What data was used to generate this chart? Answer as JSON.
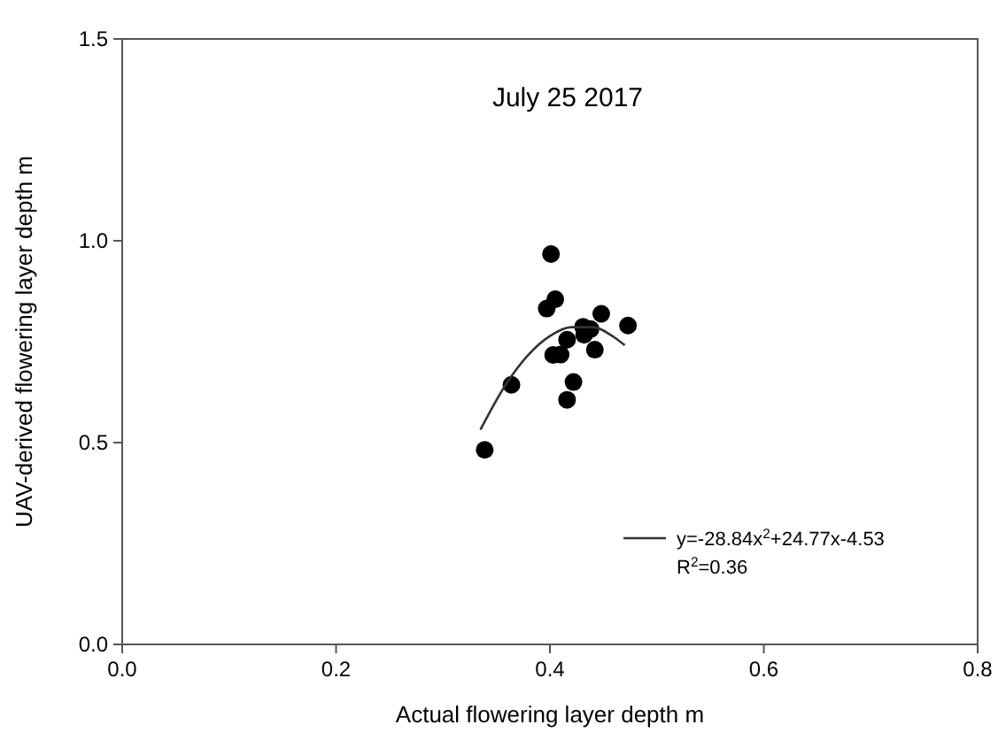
{
  "chart_data": {
    "type": "scatter",
    "title": "July 25 2017",
    "xlabel": "Actual flowering layer depth m",
    "ylabel": "UAV-derived flowering layer depth m",
    "xlim": [
      0,
      0.8
    ],
    "xticks": [
      {
        "value": 0,
        "label": "0.0"
      },
      0.2,
      0.4,
      0.6,
      0.8
    ],
    "ylim": [
      0,
      1.5
    ],
    "yticks": [
      {
        "value": 0,
        "label": "0.0"
      },
      0.5,
      {
        "value": 1,
        "label": "1.0"
      },
      1.5
    ],
    "grid": false,
    "legend": "bottom right",
    "marker": "circle",
    "series": [
      {
        "color": "#000000",
        "x": [
          0.401,
          0.405,
          0.397,
          0.448,
          0.473,
          0.431,
          0.438,
          0.432,
          0.416,
          0.442,
          0.41,
          0.403,
          0.364,
          0.422,
          0.416,
          0.339
        ],
        "values": [
          0.967,
          0.855,
          0.832,
          0.819,
          0.79,
          0.787,
          0.781,
          0.767,
          0.755,
          0.73,
          0.718,
          0.717,
          0.643,
          0.65,
          0.606,
          0.482
        ]
      },
      {
        "type": "line",
        "name": "y=-28.84x$^{2}$+24.77x-4.53",
        "color": "#333333",
        "line_style": "solid",
        "marker": "none",
        "x": [
          0.335,
          0.36,
          0.38,
          0.4,
          0.42,
          0.44,
          0.46,
          0.47
        ],
        "values": [
          0.532,
          0.649,
          0.718,
          0.764,
          0.786,
          0.786,
          0.761,
          0.741
        ]
      }
    ],
    "annotations": [
      "R$^{2}$=0.36"
    ]
  }
}
